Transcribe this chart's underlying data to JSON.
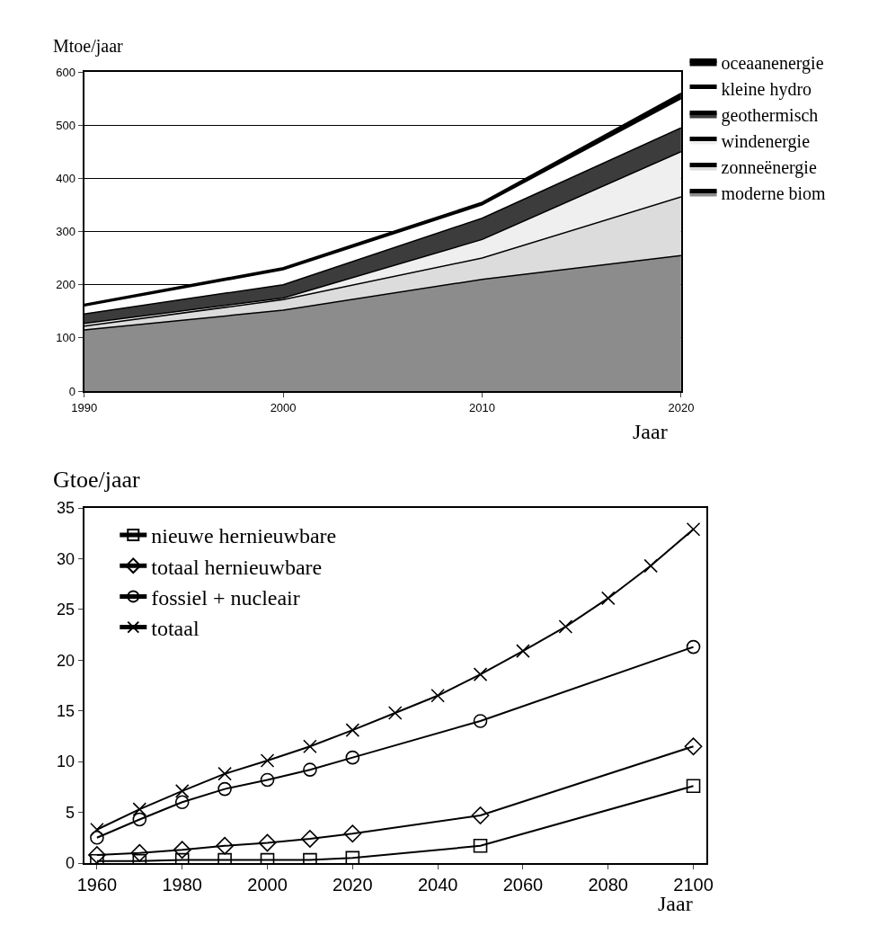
{
  "chart_data": [
    {
      "type": "area",
      "stacked": true,
      "ylabel": "Mtoe/jaar",
      "xlabel": "Jaar",
      "x": [
        1990,
        2000,
        2010,
        2020
      ],
      "xlim": [
        1990,
        2020
      ],
      "xticks": [
        1990,
        2000,
        2010,
        2020
      ],
      "ylim": [
        0,
        600
      ],
      "yticks": [
        0,
        100,
        200,
        300,
        400,
        500,
        600
      ],
      "grid": "y",
      "legend": "top right",
      "series": [
        {
          "name": "moderne biom",
          "color": "#8c8c8c",
          "values": [
            115,
            152,
            210,
            255
          ]
        },
        {
          "name": "zonneënergie",
          "color": "#dcdcdc",
          "values": [
            7,
            20,
            40,
            110
          ]
        },
        {
          "name": "windenergie",
          "color": "#efefef",
          "values": [
            5,
            3,
            35,
            85
          ]
        },
        {
          "name": "geothermisch",
          "color": "#3c3c3c",
          "values": [
            18,
            25,
            40,
            45
          ]
        },
        {
          "name": "kleine hydro",
          "color": "#ffffff",
          "values": [
            15,
            28,
            25,
            55
          ]
        },
        {
          "name": "oceaanenergie",
          "color": "#000000",
          "values": [
            3,
            4,
            5,
            10
          ]
        }
      ]
    },
    {
      "type": "line",
      "ylabel": "Gtoe/jaar",
      "xlabel": "Jaar",
      "xlim": [
        1957,
        2103
      ],
      "xticks": [
        1960,
        1980,
        2000,
        2020,
        2040,
        2060,
        2080,
        2100
      ],
      "ylim": [
        0,
        35
      ],
      "yticks": [
        0,
        5,
        10,
        15,
        20,
        25,
        30,
        35
      ],
      "grid": false,
      "legend": "top left",
      "line_style": "solid",
      "series": [
        {
          "name": "nieuwe hernieuwbare",
          "color": "#000000",
          "marker": "square",
          "x": [
            1960,
            1970,
            1980,
            1990,
            2000,
            2010,
            2020,
            2050,
            2100
          ],
          "values": [
            0.2,
            0.2,
            0.3,
            0.3,
            0.3,
            0.3,
            0.5,
            1.7,
            7.6
          ]
        },
        {
          "name": "totaal hernieuwbare",
          "color": "#000000",
          "marker": "diamond",
          "x": [
            1960,
            1970,
            1980,
            1990,
            2000,
            2010,
            2020,
            2050,
            2100
          ],
          "values": [
            0.8,
            1.0,
            1.3,
            1.7,
            2.0,
            2.4,
            2.9,
            4.7,
            11.5
          ]
        },
        {
          "name": "fossiel + nucleair",
          "color": "#000000",
          "marker": "circle",
          "x": [
            1960,
            1970,
            1980,
            1990,
            2000,
            2010,
            2020,
            2050,
            2100
          ],
          "values": [
            2.5,
            4.3,
            6.0,
            7.3,
            8.2,
            9.2,
            10.4,
            14.0,
            21.3
          ]
        },
        {
          "name": "totaal",
          "color": "#000000",
          "marker": "cross",
          "x": [
            1960,
            1970,
            1980,
            1990,
            2000,
            2010,
            2020,
            2030,
            2040,
            2050,
            2060,
            2070,
            2080,
            2090,
            2100
          ],
          "values": [
            3.3,
            5.3,
            7.1,
            8.8,
            10.1,
            11.5,
            13.1,
            14.8,
            16.5,
            18.6,
            20.9,
            23.3,
            26.1,
            29.3,
            32.9
          ]
        }
      ]
    }
  ]
}
